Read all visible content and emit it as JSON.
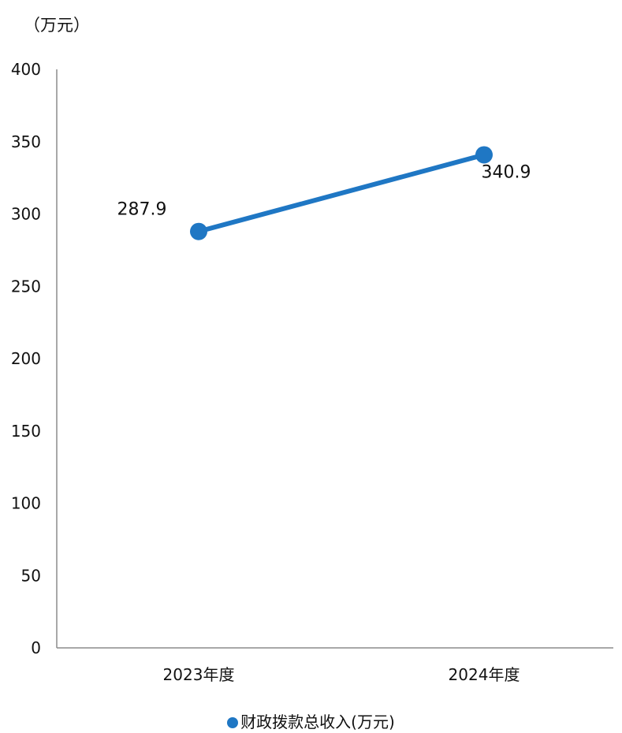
{
  "chart_data": {
    "type": "line",
    "unit_label": "（万元）",
    "categories": [
      "2023年度",
      "2024年度"
    ],
    "series": [
      {
        "name": "财政拨款总收入(万元)",
        "values": [
          287.9,
          340.9
        ],
        "color": "#1f77c4"
      }
    ],
    "data_labels": [
      "287.9",
      "340.9"
    ],
    "ylim": [
      0,
      400
    ],
    "yticks": [
      0,
      50,
      100,
      150,
      200,
      250,
      300,
      350,
      400
    ],
    "grid": false,
    "legend_position": "bottom"
  }
}
